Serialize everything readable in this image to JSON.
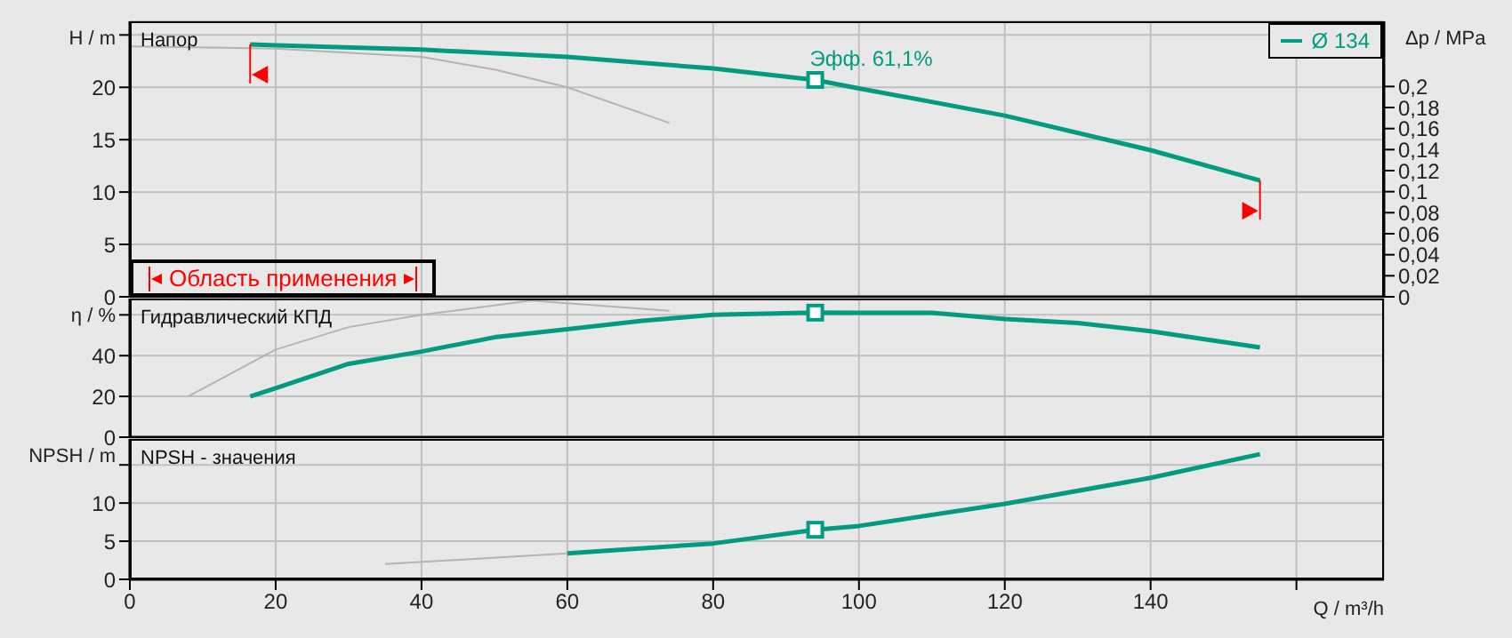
{
  "chart_data": [
    {
      "type": "line",
      "ylabel": "H / m",
      "y2label": "Δp / MPa",
      "xlim": [
        0,
        172
      ],
      "xticks": [
        0,
        20,
        40,
        60,
        80,
        100,
        120,
        140,
        160
      ],
      "ylim": [
        0,
        26.3
      ],
      "yticks": [
        0,
        5,
        10,
        15,
        20,
        {
          "value": 25,
          "label": null
        }
      ],
      "y2lim": [
        0,
        0.262
      ],
      "y2ticks": [
        {
          "value": 0,
          "label": "0"
        },
        {
          "value": 0.02,
          "label": "0,02"
        },
        {
          "value": 0.04,
          "label": "0,04"
        },
        {
          "value": 0.06,
          "label": "0,06"
        },
        {
          "value": 0.08,
          "label": "0,08"
        },
        {
          "value": 0.1,
          "label": "0,1"
        },
        {
          "value": 0.12,
          "label": "0,12"
        },
        {
          "value": 0.14,
          "label": "0,14"
        },
        {
          "value": 0.16,
          "label": "0,16"
        },
        {
          "value": 0.18,
          "label": "0,18"
        },
        {
          "value": 0.2,
          "label": "0,2"
        }
      ],
      "grid": true,
      "legend": "top right",
      "tick_labels": "y",
      "line_style": "solid",
      "annotations": [
        "Напор",
        "Область применения",
        {
          "text": "Эфф.  61,1%",
          "x": 94,
          "y": 20.7
        }
      ],
      "series": [
        {
          "name": "Ø 134",
          "color": "#009b80",
          "x": [
            16.5,
            20,
            40,
            60,
            80,
            94,
            100,
            120,
            140,
            155
          ],
          "values": [
            24.1,
            24.0,
            23.6,
            22.9,
            21.8,
            20.7,
            19.9,
            17.3,
            14.0,
            11.1
          ]
        },
        {
          "color": "#b4b4b4",
          "x": [
            0,
            20,
            40,
            50,
            60,
            74
          ],
          "values": [
            23.9,
            23.7,
            22.9,
            21.7,
            20.0,
            16.6
          ]
        },
        {
          "type": "scatter",
          "marker": "square",
          "color": "#009b80",
          "x": [
            94
          ],
          "values": [
            20.7
          ]
        }
      ]
    },
    {
      "type": "line",
      "ylabel": "η / %",
      "xlim": [
        0,
        172
      ],
      "xticks": [
        0,
        20,
        40,
        60,
        80,
        100,
        120,
        140,
        160
      ],
      "ylim": [
        0,
        68
      ],
      "yticks": [
        0,
        20,
        40,
        {
          "value": 60,
          "label": null
        }
      ],
      "grid": true,
      "tick_labels": "y",
      "line_style": "solid",
      "annotations": [
        "Гидравлический КПД"
      ],
      "series": [
        {
          "color": "#009b80",
          "x": [
            16.5,
            20,
            30,
            40,
            50,
            60,
            70,
            80,
            94,
            100,
            110,
            120,
            130,
            140,
            155
          ],
          "values": [
            20,
            24,
            36,
            42,
            49,
            53,
            57,
            60,
            61.1,
            61,
            61,
            58,
            56,
            52,
            44
          ]
        },
        {
          "color": "#b4b4b4",
          "x": [
            8,
            20,
            30,
            40,
            55,
            74
          ],
          "values": [
            20,
            43,
            54,
            60,
            67,
            62
          ]
        },
        {
          "type": "scatter",
          "marker": "square",
          "color": "#009b80",
          "x": [
            94
          ],
          "values": [
            61.1
          ]
        }
      ]
    },
    {
      "type": "line",
      "ylabel": "NPSH / m",
      "xlabel": "Q / m³/h",
      "xlim": [
        0,
        172
      ],
      "xticks": [
        0,
        20,
        40,
        60,
        80,
        100,
        120,
        140,
        {
          "value": 160,
          "label": null
        }
      ],
      "ylim": [
        0,
        18.4
      ],
      "yticks": [
        0,
        5,
        10,
        {
          "value": 15,
          "label": null
        }
      ],
      "grid": true,
      "line_style": "solid",
      "annotations": [
        "NPSH - значения"
      ],
      "series": [
        {
          "color": "#009b80",
          "x": [
            60,
            80,
            94,
            100,
            120,
            140,
            155
          ],
          "values": [
            3.4,
            4.7,
            6.5,
            7.0,
            9.9,
            13.3,
            16.4
          ]
        },
        {
          "color": "#b4b4b4",
          "x": [
            35,
            60
          ],
          "values": [
            2.0,
            3.4
          ]
        },
        {
          "type": "scatter",
          "marker": "square",
          "color": "#009b80",
          "x": [
            94
          ],
          "values": [
            6.5
          ]
        }
      ]
    }
  ]
}
